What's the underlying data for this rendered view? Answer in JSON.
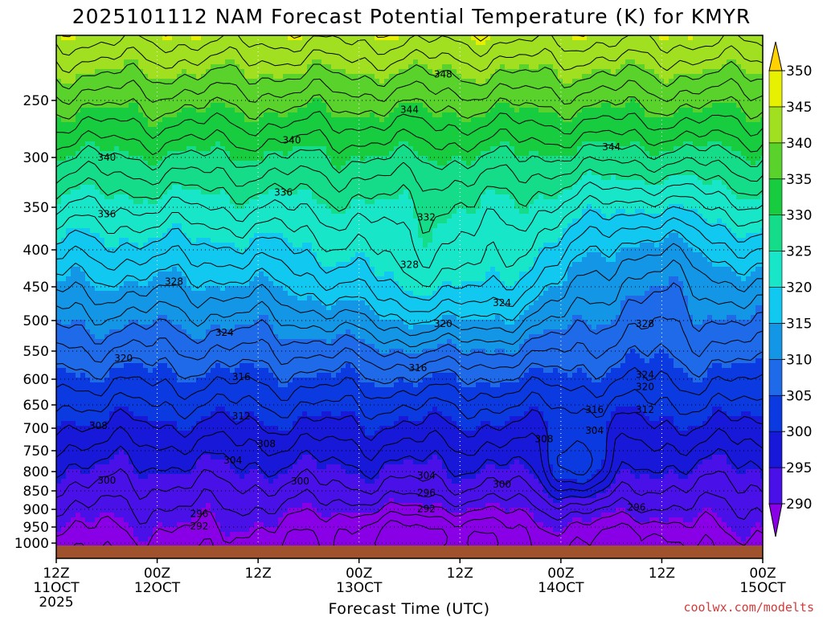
{
  "chart_data": {
    "type": "heatmap",
    "title": "2025101112 NAM Forecast Potential Temperature (K) for KMYR",
    "xlabel": "Forecast Time (UTC)",
    "ylabel": "",
    "variable": "Potential Temperature (K)",
    "x_ticks": [
      {
        "hour": 0,
        "line1": "12Z",
        "line2": "11OCT",
        "line3": "2025"
      },
      {
        "hour": 12,
        "line1": "00Z",
        "line2": "12OCT",
        "line3": ""
      },
      {
        "hour": 24,
        "line1": "12Z",
        "line2": "",
        "line3": ""
      },
      {
        "hour": 36,
        "line1": "00Z",
        "line2": "13OCT",
        "line3": ""
      },
      {
        "hour": 48,
        "line1": "12Z",
        "line2": "",
        "line3": ""
      },
      {
        "hour": 60,
        "line1": "00Z",
        "line2": "14OCT",
        "line3": ""
      },
      {
        "hour": 72,
        "line1": "12Z",
        "line2": "",
        "line3": ""
      },
      {
        "hour": 84,
        "line1": "00Z",
        "line2": "15OCT",
        "line3": ""
      }
    ],
    "xlim": [
      0,
      84
    ],
    "y_ticks": [
      "250",
      "300",
      "350",
      "400",
      "450",
      "500",
      "550",
      "600",
      "650",
      "700",
      "750",
      "800",
      "850",
      "900",
      "950",
      "1000"
    ],
    "y_tick_values": [
      250,
      300,
      350,
      400,
      450,
      500,
      550,
      600,
      650,
      700,
      750,
      800,
      850,
      900,
      950,
      1000
    ],
    "ylim": [
      200,
      1010
    ],
    "colorbar": {
      "ticks": [
        "290",
        "295",
        "300",
        "305",
        "310",
        "315",
        "320",
        "325",
        "330",
        "335",
        "340",
        "345",
        "350"
      ],
      "range": [
        287.5,
        352.5
      ],
      "colors": [
        "#8a00e6",
        "#4a10e8",
        "#1818d8",
        "#0a3ae0",
        "#1e6ae8",
        "#1496e6",
        "#10c8f0",
        "#18e6c8",
        "#14dc88",
        "#18cc40",
        "#5ad22c",
        "#a0e020",
        "#e6f000",
        "#ffd200"
      ]
    },
    "contour_labels": [
      {
        "hour": 46,
        "p": 230,
        "text": "348"
      },
      {
        "hour": 42,
        "p": 258,
        "text": "344"
      },
      {
        "hour": 66,
        "p": 291,
        "text": "344"
      },
      {
        "hour": 28,
        "p": 285,
        "text": "340"
      },
      {
        "hour": 6,
        "p": 300,
        "text": "340"
      },
      {
        "hour": 27,
        "p": 335,
        "text": "336"
      },
      {
        "hour": 6,
        "p": 358,
        "text": "336"
      },
      {
        "hour": 44,
        "p": 362,
        "text": "332"
      },
      {
        "hour": 42,
        "p": 420,
        "text": "328"
      },
      {
        "hour": 14,
        "p": 443,
        "text": "328"
      },
      {
        "hour": 70,
        "p": 505,
        "text": "328"
      },
      {
        "hour": 53,
        "p": 474,
        "text": "324"
      },
      {
        "hour": 20,
        "p": 520,
        "text": "324"
      },
      {
        "hour": 70,
        "p": 592,
        "text": "324"
      },
      {
        "hour": 46,
        "p": 505,
        "text": "320"
      },
      {
        "hour": 8,
        "p": 563,
        "text": "320"
      },
      {
        "hour": 70,
        "p": 615,
        "text": "320"
      },
      {
        "hour": 43,
        "p": 580,
        "text": "316"
      },
      {
        "hour": 22,
        "p": 596,
        "text": "316"
      },
      {
        "hour": 64,
        "p": 660,
        "text": "316"
      },
      {
        "hour": 22,
        "p": 674,
        "text": "312"
      },
      {
        "hour": 70,
        "p": 660,
        "text": "312"
      },
      {
        "hour": 5,
        "p": 695,
        "text": "308"
      },
      {
        "hour": 25,
        "p": 735,
        "text": "308"
      },
      {
        "hour": 58,
        "p": 724,
        "text": "308"
      },
      {
        "hour": 21,
        "p": 773,
        "text": "304"
      },
      {
        "hour": 44,
        "p": 810,
        "text": "304"
      },
      {
        "hour": 64,
        "p": 705,
        "text": "304"
      },
      {
        "hour": 6,
        "p": 823,
        "text": "300"
      },
      {
        "hour": 29,
        "p": 825,
        "text": "300"
      },
      {
        "hour": 53,
        "p": 833,
        "text": "300"
      },
      {
        "hour": 44,
        "p": 855,
        "text": "296"
      },
      {
        "hour": 17,
        "p": 912,
        "text": "296"
      },
      {
        "hour": 69,
        "p": 895,
        "text": "296"
      },
      {
        "hour": 44,
        "p": 899,
        "text": "292"
      },
      {
        "hour": 17,
        "p": 948,
        "text": "292"
      }
    ]
  },
  "credit": "coolwx.com/modelts"
}
